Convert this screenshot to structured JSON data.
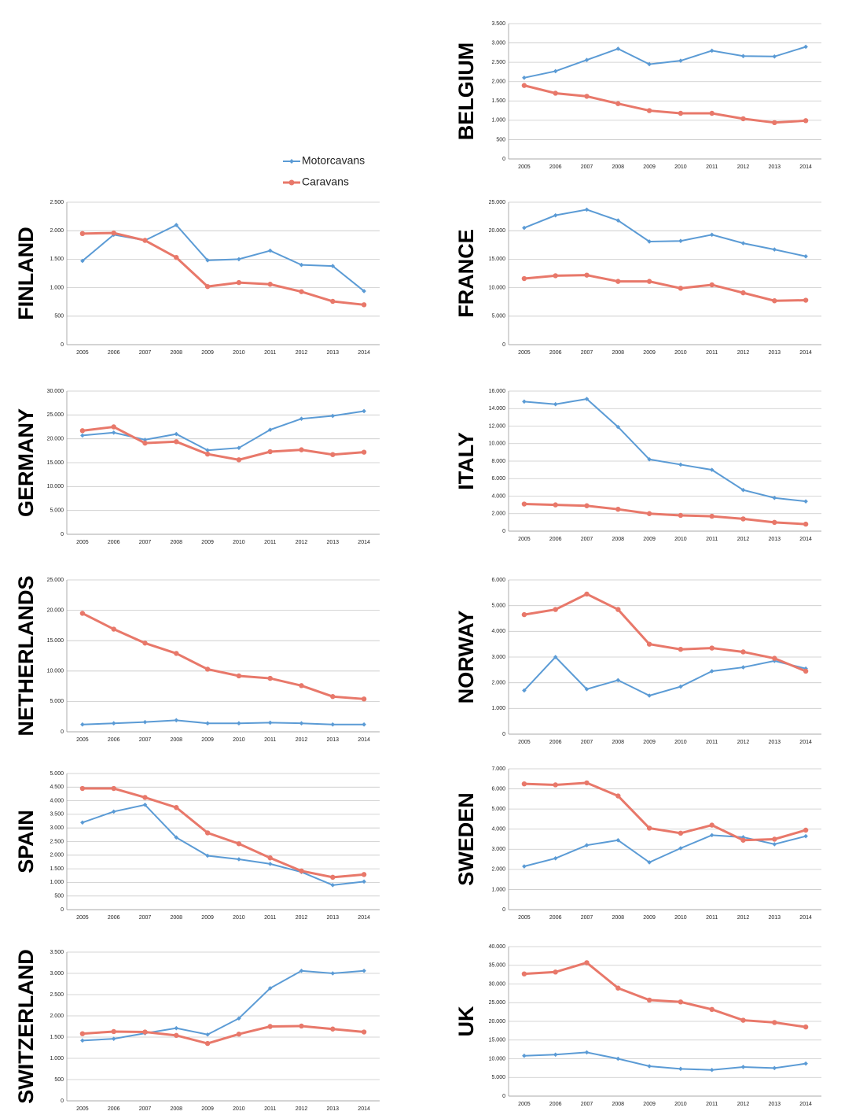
{
  "legend": [
    {
      "name": "Motorcavans",
      "color": "#5b9bd5"
    },
    {
      "name": "Caravans",
      "color": "#e8786a"
    }
  ],
  "chart_data": [
    {
      "type": "line",
      "title": "BELGIUM",
      "categories": [
        "2005",
        "2006",
        "2007",
        "2008",
        "2009",
        "2010",
        "2011",
        "2012",
        "2013",
        "2014"
      ],
      "ylim": [
        0,
        3500
      ],
      "yticks": [
        0,
        500,
        {
          "value": 1000,
          "label": "1.000"
        },
        {
          "value": 1500,
          "label": "1.500"
        },
        {
          "value": 2000,
          "label": "2.000"
        },
        {
          "value": 2500,
          "label": "2.500"
        },
        {
          "value": 3000,
          "label": "3.000"
        },
        {
          "value": 3500,
          "label": "3.500"
        }
      ],
      "grid": true,
      "series": [
        {
          "values": [
            2100,
            2270,
            2560,
            2850,
            2450,
            2540,
            2800,
            2660,
            2650,
            2900
          ]
        },
        {
          "values": [
            1900,
            1700,
            1620,
            1430,
            1250,
            1180,
            1180,
            1040,
            940,
            990
          ]
        }
      ]
    },
    {
      "type": "line",
      "title": "FINLAND",
      "categories": [
        "2005",
        "2006",
        "2007",
        "2008",
        "2009",
        "2010",
        "2011",
        "2012",
        "2013",
        "2014"
      ],
      "ylim": [
        0,
        2500
      ],
      "yticks": [
        0,
        500,
        {
          "value": 1000,
          "label": "1.000"
        },
        {
          "value": 1500,
          "label": "1.500"
        },
        {
          "value": 2000,
          "label": "2.000"
        },
        {
          "value": 2500,
          "label": "2.500"
        }
      ],
      "grid": true,
      "series": [
        {
          "values": [
            1470,
            1930,
            1830,
            2100,
            1480,
            1500,
            1650,
            1400,
            1380,
            940
          ]
        },
        {
          "values": [
            1950,
            1960,
            1830,
            1530,
            1020,
            1090,
            1060,
            930,
            760,
            700
          ]
        }
      ]
    },
    {
      "type": "line",
      "title": "FRANCE",
      "categories": [
        "2005",
        "2006",
        "2007",
        "2008",
        "2009",
        "2010",
        "2011",
        "2012",
        "2013",
        "2014"
      ],
      "ylim": [
        0,
        25000
      ],
      "yticks": [
        0,
        {
          "value": 5000,
          "label": "5.000"
        },
        {
          "value": 10000,
          "label": "10.000"
        },
        {
          "value": 15000,
          "label": "15.000"
        },
        {
          "value": 20000,
          "label": "20.000"
        },
        {
          "value": 25000,
          "label": "25.000"
        }
      ],
      "grid": true,
      "series": [
        {
          "values": [
            20500,
            22700,
            23700,
            21800,
            18100,
            18200,
            19300,
            17800,
            16700,
            15500
          ]
        },
        {
          "values": [
            11600,
            12100,
            12200,
            11100,
            11100,
            9900,
            10500,
            9100,
            7700,
            7800
          ]
        }
      ]
    },
    {
      "type": "line",
      "title": "GERMANY",
      "categories": [
        "2005",
        "2006",
        "2007",
        "2008",
        "2009",
        "2010",
        "2011",
        "2012",
        "2013",
        "2014"
      ],
      "ylim": [
        0,
        30000
      ],
      "yticks": [
        0,
        {
          "value": 5000,
          "label": "5.000"
        },
        {
          "value": 10000,
          "label": "10.000"
        },
        {
          "value": 15000,
          "label": "15.000"
        },
        {
          "value": 20000,
          "label": "20.000"
        },
        {
          "value": 25000,
          "label": "25.000"
        },
        {
          "value": 30000,
          "label": "30.000"
        }
      ],
      "grid": true,
      "series": [
        {
          "values": [
            20700,
            21300,
            19800,
            21000,
            17600,
            18100,
            21900,
            24200,
            24800,
            25800
          ]
        },
        {
          "values": [
            21700,
            22500,
            19100,
            19400,
            16800,
            15600,
            17300,
            17700,
            16700,
            17200
          ]
        }
      ]
    },
    {
      "type": "line",
      "title": "ITALY",
      "categories": [
        "2005",
        "2006",
        "2007",
        "2008",
        "2009",
        "2010",
        "2011",
        "2012",
        "2013",
        "2014"
      ],
      "ylim": [
        0,
        16000
      ],
      "yticks": [
        0,
        {
          "value": 2000,
          "label": "2.000"
        },
        {
          "value": 4000,
          "label": "4.000"
        },
        {
          "value": 6000,
          "label": "6.000"
        },
        {
          "value": 8000,
          "label": "8.000"
        },
        {
          "value": 10000,
          "label": "10.000"
        },
        {
          "value": 12000,
          "label": "12.000"
        },
        {
          "value": 14000,
          "label": "14.000"
        },
        {
          "value": 16000,
          "label": "16.000"
        }
      ],
      "grid": true,
      "series": [
        {
          "values": [
            14800,
            14500,
            15100,
            11900,
            8200,
            7600,
            7000,
            4700,
            3800,
            3400
          ]
        },
        {
          "values": [
            3100,
            3000,
            2900,
            2500,
            2000,
            1800,
            1700,
            1400,
            1000,
            800
          ]
        }
      ]
    },
    {
      "type": "line",
      "title": "NETHERLANDS",
      "categories": [
        "2005",
        "2006",
        "2007",
        "2008",
        "2009",
        "2010",
        "2011",
        "2012",
        "2013",
        "2014"
      ],
      "ylim": [
        0,
        25000
      ],
      "yticks": [
        0,
        {
          "value": 5000,
          "label": "5.000"
        },
        {
          "value": 10000,
          "label": "10.000"
        },
        {
          "value": 15000,
          "label": "15.000"
        },
        {
          "value": 20000,
          "label": "20.000"
        },
        {
          "value": 25000,
          "label": "25.000"
        }
      ],
      "grid": true,
      "series": [
        {
          "values": [
            1200,
            1400,
            1600,
            1900,
            1400,
            1400,
            1500,
            1400,
            1200,
            1200
          ]
        },
        {
          "values": [
            19500,
            16900,
            14600,
            12900,
            10300,
            9200,
            8800,
            7600,
            5800,
            5400
          ]
        }
      ]
    },
    {
      "type": "line",
      "title": "NORWAY",
      "categories": [
        "2005",
        "2006",
        "2007",
        "2008",
        "2009",
        "2010",
        "2011",
        "2012",
        "2013",
        "2014"
      ],
      "ylim": [
        0,
        6000
      ],
      "yticks": [
        0,
        {
          "value": 1000,
          "label": "1.000"
        },
        {
          "value": 2000,
          "label": "2.000"
        },
        {
          "value": 3000,
          "label": "3.000"
        },
        {
          "value": 4000,
          "label": "4.000"
        },
        {
          "value": 5000,
          "label": "5.000"
        },
        {
          "value": 6000,
          "label": "6.000"
        }
      ],
      "grid": true,
      "series": [
        {
          "values": [
            1700,
            3000,
            1750,
            2100,
            1500,
            1850,
            2450,
            2600,
            2850,
            2550
          ]
        },
        {
          "values": [
            4650,
            4850,
            5450,
            4850,
            3500,
            3300,
            3350,
            3200,
            2950,
            2450
          ]
        }
      ]
    },
    {
      "type": "line",
      "title": "SPAIN",
      "categories": [
        "2005",
        "2006",
        "2007",
        "2008",
        "2009",
        "2010",
        "2011",
        "2012",
        "2013",
        "2014"
      ],
      "ylim": [
        0,
        5000
      ],
      "yticks": [
        0,
        500,
        {
          "value": 1000,
          "label": "1.000"
        },
        {
          "value": 1500,
          "label": "1.500"
        },
        {
          "value": 2000,
          "label": "2.000"
        },
        {
          "value": 2500,
          "label": "2.500"
        },
        {
          "value": 3000,
          "label": "3.000"
        },
        {
          "value": 3500,
          "label": "3.500"
        },
        {
          "value": 4000,
          "label": "4.000"
        },
        {
          "value": 4500,
          "label": "4.500"
        },
        {
          "value": 5000,
          "label": "5.000"
        }
      ],
      "grid": true,
      "series": [
        {
          "values": [
            3200,
            3600,
            3850,
            2650,
            1980,
            1850,
            1680,
            1380,
            900,
            1030
          ]
        },
        {
          "values": [
            4450,
            4450,
            4120,
            3750,
            2820,
            2420,
            1900,
            1420,
            1190,
            1290
          ]
        }
      ]
    },
    {
      "type": "line",
      "title": "SWEDEN",
      "categories": [
        "2005",
        "2006",
        "2007",
        "2008",
        "2009",
        "2010",
        "2011",
        "2012",
        "2013",
        "2014"
      ],
      "ylim": [
        0,
        7000
      ],
      "yticks": [
        0,
        {
          "value": 1000,
          "label": "1.000"
        },
        {
          "value": 2000,
          "label": "2.000"
        },
        {
          "value": 3000,
          "label": "3.000"
        },
        {
          "value": 4000,
          "label": "4.000"
        },
        {
          "value": 5000,
          "label": "5.000"
        },
        {
          "value": 6000,
          "label": "6.000"
        },
        {
          "value": 7000,
          "label": "7.000"
        }
      ],
      "grid": true,
      "series": [
        {
          "values": [
            2150,
            2550,
            3200,
            3450,
            2350,
            3050,
            3700,
            3600,
            3250,
            3650
          ]
        },
        {
          "values": [
            6250,
            6200,
            6300,
            5650,
            4050,
            3800,
            4200,
            3450,
            3500,
            3950
          ]
        }
      ]
    },
    {
      "type": "line",
      "title": "SWITZERLAND",
      "categories": [
        "2005",
        "2006",
        "2007",
        "2008",
        "2009",
        "2010",
        "2011",
        "2012",
        "2013",
        "2014"
      ],
      "ylim": [
        0,
        3500
      ],
      "yticks": [
        0,
        500,
        {
          "value": 1000,
          "label": "1.000"
        },
        {
          "value": 1500,
          "label": "1.500"
        },
        {
          "value": 2000,
          "label": "2.000"
        },
        {
          "value": 2500,
          "label": "2.500"
        },
        {
          "value": 3000,
          "label": "3.000"
        },
        {
          "value": 3500,
          "label": "3.500"
        }
      ],
      "grid": true,
      "series": [
        {
          "values": [
            1420,
            1460,
            1590,
            1710,
            1560,
            1940,
            2650,
            3060,
            3000,
            3060
          ]
        },
        {
          "values": [
            1580,
            1630,
            1620,
            1540,
            1350,
            1570,
            1750,
            1760,
            1690,
            1620
          ]
        }
      ]
    },
    {
      "type": "line",
      "title": "UK",
      "categories": [
        "2005",
        "2006",
        "2007",
        "2008",
        "2009",
        "2010",
        "2011",
        "2012",
        "2013",
        "2014"
      ],
      "ylim": [
        0,
        40000
      ],
      "yticks": [
        0,
        {
          "value": 5000,
          "label": "5.000"
        },
        {
          "value": 10000,
          "label": "10.000"
        },
        {
          "value": 15000,
          "label": "15.000"
        },
        {
          "value": 20000,
          "label": "20.000"
        },
        {
          "value": 25000,
          "label": "25.000"
        },
        {
          "value": 30000,
          "label": "30.000"
        },
        {
          "value": 35000,
          "label": "35.000"
        },
        {
          "value": 40000,
          "label": "40.000"
        }
      ],
      "grid": true,
      "series": [
        {
          "values": [
            10800,
            11100,
            11700,
            10000,
            8000,
            7300,
            7000,
            7800,
            7500,
            8700
          ]
        },
        {
          "values": [
            32700,
            33200,
            35700,
            28900,
            25700,
            25200,
            23200,
            20300,
            19700,
            18500
          ]
        }
      ]
    }
  ]
}
